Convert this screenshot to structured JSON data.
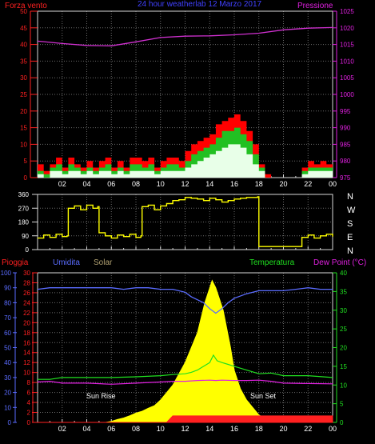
{
  "colors": {
    "background": "#000000",
    "frame": "#d8d8d8",
    "grid": "#6a6a6a",
    "wind_axis": "#ff2020",
    "pressure_axis": "#e020e0",
    "wind_max": "#ff0000",
    "wind_gust": "#22c022",
    "wind_avg": "#e8ffe8",
    "pressure": "#d030d0",
    "direction": "#ffff00",
    "rain": "#ff2020",
    "humidity": "#5a6cff",
    "solar": "#ffff00",
    "temperature": "#20e020",
    "dewpoint": "#e020e0",
    "title": "#4040ff",
    "solar_label": "#b0a070",
    "text": "#ffffff"
  },
  "header": {
    "wind_label": "Forza vento",
    "title": "24 hour weatherlab   12 Marzo 2017",
    "pressure_label": "Pressione"
  },
  "direction_letters": [
    "N",
    "W",
    "S",
    "E",
    "N"
  ],
  "bottom_header": {
    "rain_label": "Pioggia",
    "humidity_label": "Umidita",
    "solar_label": "Solar",
    "temperature_label": "Temperatura",
    "dewpoint_label": "Dew Point (°C)"
  },
  "chart_data": [
    {
      "type": "area",
      "name": "wind-pressure",
      "x_ticks": [
        "02",
        "04",
        "06",
        "08",
        "10",
        "12",
        "14",
        "16",
        "18",
        "20",
        "22",
        "00"
      ],
      "x_range": [
        0,
        24
      ],
      "y_left_ticks": [
        "0",
        "5",
        "10",
        "15",
        "20",
        "25",
        "30",
        "35",
        "40",
        "45",
        "50"
      ],
      "y_left_range": [
        0,
        50
      ],
      "y_right_ticks": [
        "975",
        "980",
        "985",
        "990",
        "995",
        "1000",
        "1005",
        "1010",
        "1015",
        "1020",
        "1025"
      ],
      "y_right_range": [
        975,
        1025
      ],
      "series": [
        {
          "key": "wind_max",
          "x": [
            0,
            0.5,
            1,
            1.5,
            2,
            2.5,
            3,
            3.5,
            4,
            4.5,
            5,
            5.5,
            6,
            6.5,
            7,
            7.5,
            8,
            8.5,
            9,
            9.5,
            10,
            10.5,
            11,
            11.5,
            12,
            12.5,
            13,
            13.5,
            14,
            14.5,
            15,
            15.5,
            16,
            16.5,
            17,
            17.5,
            18,
            18.5,
            19,
            19.5,
            20,
            20.5,
            21,
            21.5,
            22,
            22.5,
            23,
            23.5,
            24
          ],
          "values": [
            4,
            2,
            4,
            6,
            3,
            6,
            4,
            3,
            5,
            3,
            5,
            6,
            3,
            5,
            3,
            6,
            6,
            5,
            6,
            3,
            5,
            6,
            6,
            5,
            8,
            10,
            11,
            12,
            13,
            16,
            17,
            18,
            19,
            17,
            14,
            10,
            4,
            1,
            0,
            0,
            0,
            0,
            0,
            3,
            5,
            4,
            5,
            4,
            3
          ]
        },
        {
          "key": "wind_gust",
          "x": [
            0,
            0.5,
            1,
            1.5,
            2,
            2.5,
            3,
            3.5,
            4,
            4.5,
            5,
            5.5,
            6,
            6.5,
            7,
            7.5,
            8,
            8.5,
            9,
            9.5,
            10,
            10.5,
            11,
            11.5,
            12,
            12.5,
            13,
            13.5,
            14,
            14.5,
            15,
            15.5,
            16,
            16.5,
            17,
            17.5,
            18,
            18.5,
            19,
            19.5,
            20,
            20.5,
            21,
            21.5,
            22,
            22.5,
            23,
            23.5,
            24
          ],
          "values": [
            2,
            1,
            3,
            4,
            2,
            4,
            3,
            2,
            3,
            2,
            3,
            4,
            2,
            3,
            2,
            4,
            4,
            3,
            4,
            2,
            3,
            4,
            4,
            3,
            5,
            7,
            8,
            9,
            10,
            12,
            14,
            14,
            15,
            13,
            11,
            7,
            3,
            0,
            0,
            0,
            0,
            0,
            0,
            2,
            3,
            3,
            3,
            3,
            2
          ]
        },
        {
          "key": "wind_avg",
          "x": [
            0,
            0.5,
            1,
            1.5,
            2,
            2.5,
            3,
            3.5,
            4,
            4.5,
            5,
            5.5,
            6,
            6.5,
            7,
            7.5,
            8,
            8.5,
            9,
            9.5,
            10,
            10.5,
            11,
            11.5,
            12,
            12.5,
            13,
            13.5,
            14,
            14.5,
            15,
            15.5,
            16,
            16.5,
            17,
            17.5,
            18,
            18.5,
            19,
            19.5,
            20,
            20.5,
            21,
            21.5,
            22,
            22.5,
            23,
            23.5,
            24
          ],
          "values": [
            1,
            0,
            2,
            2,
            1,
            2,
            2,
            1,
            2,
            1,
            2,
            2,
            1,
            2,
            1,
            2,
            2,
            2,
            2,
            1,
            2,
            2,
            2,
            2,
            3,
            4,
            5,
            6,
            7,
            8,
            9,
            10,
            10,
            9,
            7,
            4,
            2,
            0,
            0,
            0,
            0,
            0,
            0,
            1,
            2,
            2,
            2,
            2,
            1
          ]
        },
        {
          "key": "pressure",
          "axis": "right",
          "x": [
            0,
            2,
            4,
            6,
            8,
            10,
            12,
            14,
            16,
            18,
            20,
            22,
            24
          ],
          "values": [
            1016,
            1015.3,
            1014.7,
            1014.6,
            1015.8,
            1017.1,
            1017.5,
            1017.6,
            1017.9,
            1018.4,
            1019.4,
            1019.9,
            1020.1
          ]
        }
      ]
    },
    {
      "type": "line",
      "name": "wind-direction",
      "x_ticks": [
        "02",
        "04",
        "06",
        "08",
        "10",
        "12",
        "14",
        "16",
        "18",
        "20",
        "22",
        "00"
      ],
      "x_range": [
        0,
        24
      ],
      "y_ticks": [
        "0",
        "90",
        "180",
        "270",
        "360"
      ],
      "y_range": [
        0,
        360
      ],
      "series": [
        {
          "key": "direction",
          "x": [
            0,
            0.5,
            1,
            1.5,
            2,
            2.4,
            2.5,
            3,
            3.5,
            4,
            4.5,
            4.9,
            5,
            5.5,
            6,
            6.5,
            7,
            7.5,
            8,
            8.4,
            8.5,
            9,
            9.5,
            10,
            10.5,
            11,
            11.5,
            12,
            12.5,
            13,
            13.5,
            14,
            14.5,
            15,
            15.5,
            16,
            16.5,
            17,
            17.5,
            17.9,
            18,
            18.5,
            19,
            19.5,
            20,
            20.5,
            21,
            21.5,
            22,
            22.5,
            23,
            23.5,
            24
          ],
          "values": [
            75,
            95,
            80,
            100,
            85,
            90,
            270,
            285,
            260,
            290,
            270,
            280,
            110,
            90,
            75,
            95,
            85,
            100,
            80,
            90,
            280,
            290,
            260,
            285,
            300,
            320,
            325,
            340,
            335,
            330,
            320,
            335,
            325,
            310,
            320,
            330,
            335,
            340,
            340,
            345,
            20,
            20,
            20,
            20,
            20,
            20,
            20,
            80,
            95,
            75,
            90,
            100,
            85
          ]
        }
      ]
    },
    {
      "type": "line",
      "name": "rain-humidity-solar-temp",
      "x_ticks": [
        "02",
        "04",
        "06",
        "08",
        "10",
        "12",
        "14",
        "16",
        "18",
        "20",
        "22",
        "00"
      ],
      "x_range": [
        0,
        24
      ],
      "y_left_rain_ticks": [
        "0",
        "2",
        "4",
        "6",
        "8",
        "10",
        "12",
        "14",
        "16",
        "18",
        "20",
        "22",
        "24",
        "26",
        "28",
        "30"
      ],
      "y_left_rain_range": [
        0,
        30
      ],
      "y_left_humidity_ticks": [
        "0",
        "10",
        "20",
        "30",
        "40",
        "50",
        "60",
        "70",
        "80",
        "90",
        "100"
      ],
      "y_left_humidity_range": [
        0,
        100
      ],
      "y_right_ticks": [
        "0",
        "5",
        "10",
        "15",
        "20",
        "25",
        "30",
        "35",
        "40"
      ],
      "y_right_range": [
        0,
        40
      ],
      "annotations": [
        "Sun Rise",
        "Sun Set"
      ],
      "series": [
        {
          "key": "rain",
          "x": [
            0,
            10.5,
            11,
            24
          ],
          "values": [
            0,
            0,
            1.3,
            1.3
          ]
        },
        {
          "key": "humidity",
          "x": [
            0,
            1,
            2,
            4,
            6,
            7,
            8,
            9,
            10,
            11,
            12,
            12.5,
            13,
            13.5,
            14,
            14.5,
            15,
            15.5,
            16,
            17,
            18,
            19,
            20,
            21,
            22,
            23,
            24
          ],
          "values": [
            89,
            90,
            90,
            90,
            90,
            89,
            90,
            90,
            89,
            89,
            87,
            84,
            82,
            80,
            76,
            73,
            76,
            80,
            83,
            86,
            88,
            88,
            88,
            89,
            90,
            89,
            89
          ]
        },
        {
          "key": "solar",
          "x": [
            0,
            5.5,
            6,
            6.5,
            7,
            7.5,
            8,
            8.5,
            9,
            9.5,
            10,
            10.5,
            11,
            11.5,
            12,
            12.5,
            13,
            13.3,
            13.6,
            13.9,
            14.2,
            14.5,
            14.8,
            15.1,
            15.4,
            15.7,
            16,
            16.5,
            17,
            17.5,
            18,
            18.5,
            19,
            24
          ],
          "values": [
            0,
            0,
            0.3,
            0.8,
            1.2,
            1.8,
            2.5,
            3,
            3.8,
            4.5,
            6,
            8,
            10,
            13,
            16,
            20,
            24,
            28,
            32,
            35,
            38,
            36,
            33,
            30,
            25,
            20,
            14,
            9,
            6,
            4,
            2,
            1,
            0,
            0
          ]
        },
        {
          "key": "temperature",
          "x": [
            0,
            1,
            2,
            4,
            6,
            8,
            10,
            11,
            12,
            12.5,
            13,
            13.5,
            14,
            14.3,
            14.6,
            15,
            15.5,
            16,
            17,
            18,
            19,
            20,
            22,
            24
          ],
          "values": [
            11.5,
            11.5,
            12,
            12,
            12,
            12.2,
            12.5,
            12.8,
            13,
            13.4,
            14,
            15,
            16,
            18,
            16.5,
            16,
            15.5,
            15,
            14,
            13,
            13.2,
            12.5,
            12.5,
            12
          ]
        },
        {
          "key": "dewpoint",
          "x": [
            0,
            1,
            2,
            4,
            6,
            8,
            10,
            11,
            12,
            13,
            14,
            14.5,
            15,
            16,
            17,
            18,
            19,
            20,
            22,
            24
          ],
          "values": [
            10.8,
            11,
            10.5,
            10.5,
            10.2,
            10.5,
            10.8,
            11,
            11,
            11.2,
            11.3,
            11.2,
            11.3,
            11.2,
            11.2,
            11.3,
            11,
            10.5,
            10.4,
            10.3
          ]
        }
      ]
    }
  ]
}
